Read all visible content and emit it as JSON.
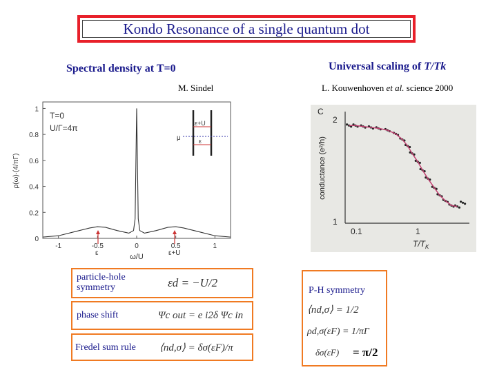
{
  "title": "Kondo Resonance of a single quantum dot",
  "left": {
    "heading": "Spectral density at T=0",
    "author": "M. Sindel"
  },
  "right": {
    "heading_prefix": "Universal scaling of",
    "heading_var": "T/Tk",
    "citation_prefix": "L. Kouwenhoven",
    "citation_etal": "et al.",
    "citation_suffix": "science 2000"
  },
  "left_chart": {
    "type": "line",
    "ylabel": "ρ(ω)·(4/πΓ)",
    "xlabel": "ω/U",
    "x_ticks": [
      "-1",
      "-0.5",
      "0",
      "0.5",
      "1"
    ],
    "y_ticks": [
      "0",
      "0.2",
      "0.4",
      "0.6",
      "0.8",
      "1"
    ],
    "legend_T": "T=0",
    "legend_U": "U/Γ=4π",
    "inset_eU": "ε+U",
    "inset_mu": "μ",
    "inset_e": "ε",
    "arrow_left": "ε",
    "arrow_right": "ε+U",
    "chart_data": {
      "type": "line",
      "xlim": [
        -1.2,
        1.2
      ],
      "ylim": [
        0,
        1.05
      ],
      "x": [
        -1.2,
        -1.0,
        -0.8,
        -0.6,
        -0.5,
        -0.4,
        -0.25,
        -0.1,
        -0.04,
        -0.02,
        0,
        0.02,
        0.04,
        0.1,
        0.25,
        0.4,
        0.5,
        0.6,
        0.8,
        1.0,
        1.2
      ],
      "y": [
        0.01,
        0.02,
        0.05,
        0.08,
        0.09,
        0.085,
        0.06,
        0.04,
        0.06,
        0.15,
        1.0,
        0.15,
        0.06,
        0.04,
        0.06,
        0.085,
        0.09,
        0.08,
        0.05,
        0.02,
        0.01
      ]
    }
  },
  "right_chart": {
    "ylabel": "conductance (e²/h)",
    "xlabel": "T/T",
    "xlabel_sub": "K",
    "corner_label": "C",
    "y_ticks": [
      "2",
      "1"
    ],
    "x_ticks": [
      "0.1",
      "1"
    ],
    "chart_data": {
      "type": "scatter",
      "xscale": "log",
      "xlim": [
        0.07,
        5
      ],
      "ylim": [
        0.9,
        2.1
      ],
      "x": [
        0.08,
        0.1,
        0.13,
        0.17,
        0.22,
        0.3,
        0.4,
        0.5,
        0.6,
        0.7,
        0.85,
        1.0,
        1.2,
        1.5,
        1.8,
        2.2,
        2.7,
        3.3,
        4.0
      ],
      "y": [
        1.95,
        1.95,
        1.94,
        1.93,
        1.92,
        1.9,
        1.86,
        1.8,
        1.73,
        1.65,
        1.56,
        1.47,
        1.38,
        1.28,
        1.2,
        1.14,
        1.09,
        1.08,
        1.12
      ]
    }
  },
  "equations": {
    "ph_label": "particle-hole symmetry",
    "ph_eq": "εd = −U/2",
    "phase_label": "phase shift",
    "phase_eq": "Ψc out = e i2δ Ψc in",
    "friedel_label": "Fredel sum rule",
    "friedel_eq": "⟨nd,σ⟩ = δσ(εF)/π",
    "ph_right_label": "P-H symmetry",
    "n_eq": "⟨nd,σ⟩ = 1/2",
    "rho_eq": "ρd,σ(εF) = 1/πΓ",
    "delta_eq_prefix": "δσ(εF)",
    "delta_eq_suffix": "= π/2"
  }
}
